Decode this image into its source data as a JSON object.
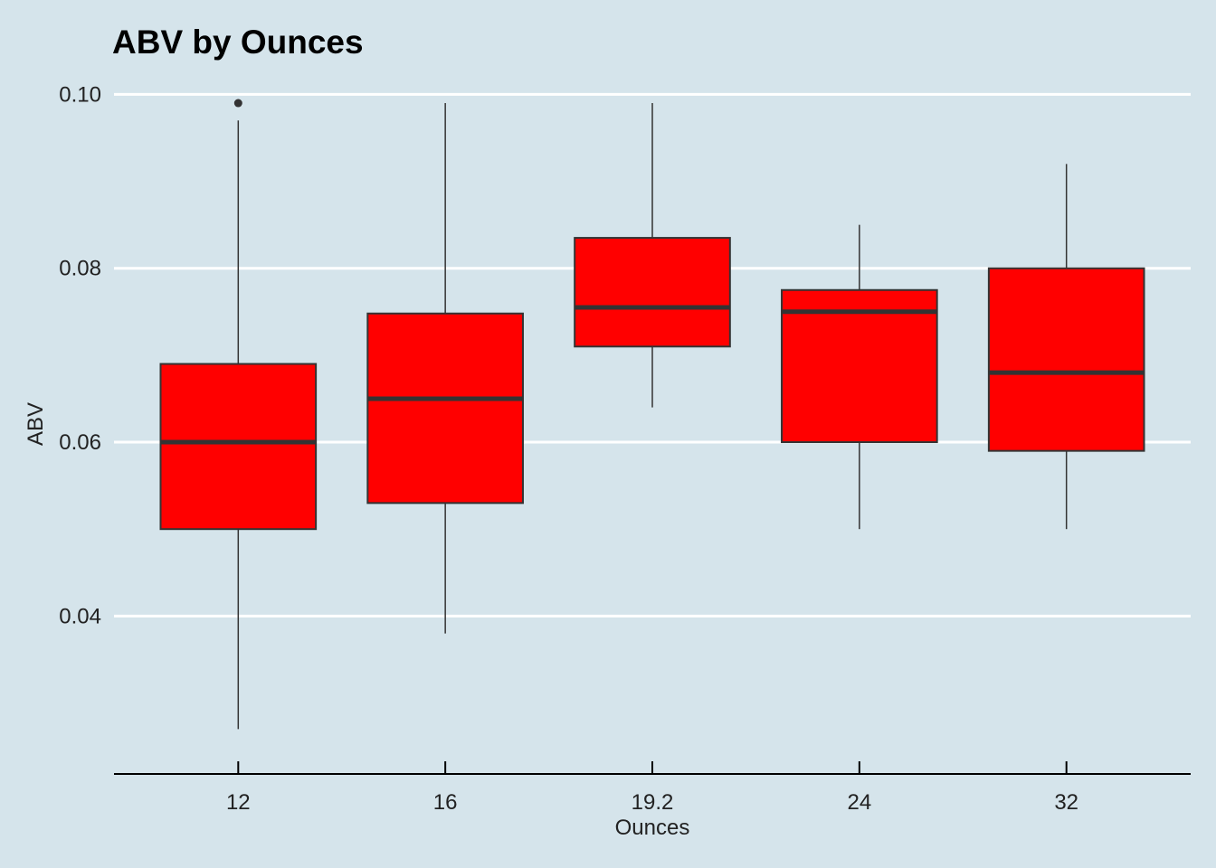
{
  "chart_data": {
    "type": "boxplot",
    "title": "ABV by Ounces",
    "xlabel": "Ounces",
    "ylabel": "ABV",
    "categories": [
      "12",
      "16",
      "19.2",
      "24",
      "32"
    ],
    "ylim": [
      0.0235,
      0.1015
    ],
    "yticks": [
      0.04,
      0.06,
      0.08,
      0.1
    ],
    "ytick_labels": [
      "0.04",
      "0.06",
      "0.08",
      "0.10"
    ],
    "boxes": [
      {
        "category": "12",
        "whisker_low": 0.027,
        "q1": 0.05,
        "median": 0.06,
        "q3": 0.069,
        "whisker_high": 0.097,
        "outliers": [
          0.099
        ]
      },
      {
        "category": "16",
        "whisker_low": 0.038,
        "q1": 0.053,
        "median": 0.065,
        "q3": 0.0748,
        "whisker_high": 0.099,
        "outliers": []
      },
      {
        "category": "19.2",
        "whisker_low": 0.064,
        "q1": 0.071,
        "median": 0.0755,
        "q3": 0.0835,
        "whisker_high": 0.099,
        "outliers": []
      },
      {
        "category": "24",
        "whisker_low": 0.05,
        "q1": 0.06,
        "median": 0.075,
        "q3": 0.0775,
        "whisker_high": 0.085,
        "outliers": []
      },
      {
        "category": "32",
        "whisker_low": 0.05,
        "q1": 0.059,
        "median": 0.068,
        "q3": 0.08,
        "whisker_high": 0.092,
        "outliers": []
      }
    ],
    "grid": "horizontal-major",
    "colors": {
      "background": "#d5e4eb",
      "box_fill": "#ff0000",
      "box_line": "#333333",
      "grid": "#ffffff",
      "axis": "#000000"
    }
  }
}
